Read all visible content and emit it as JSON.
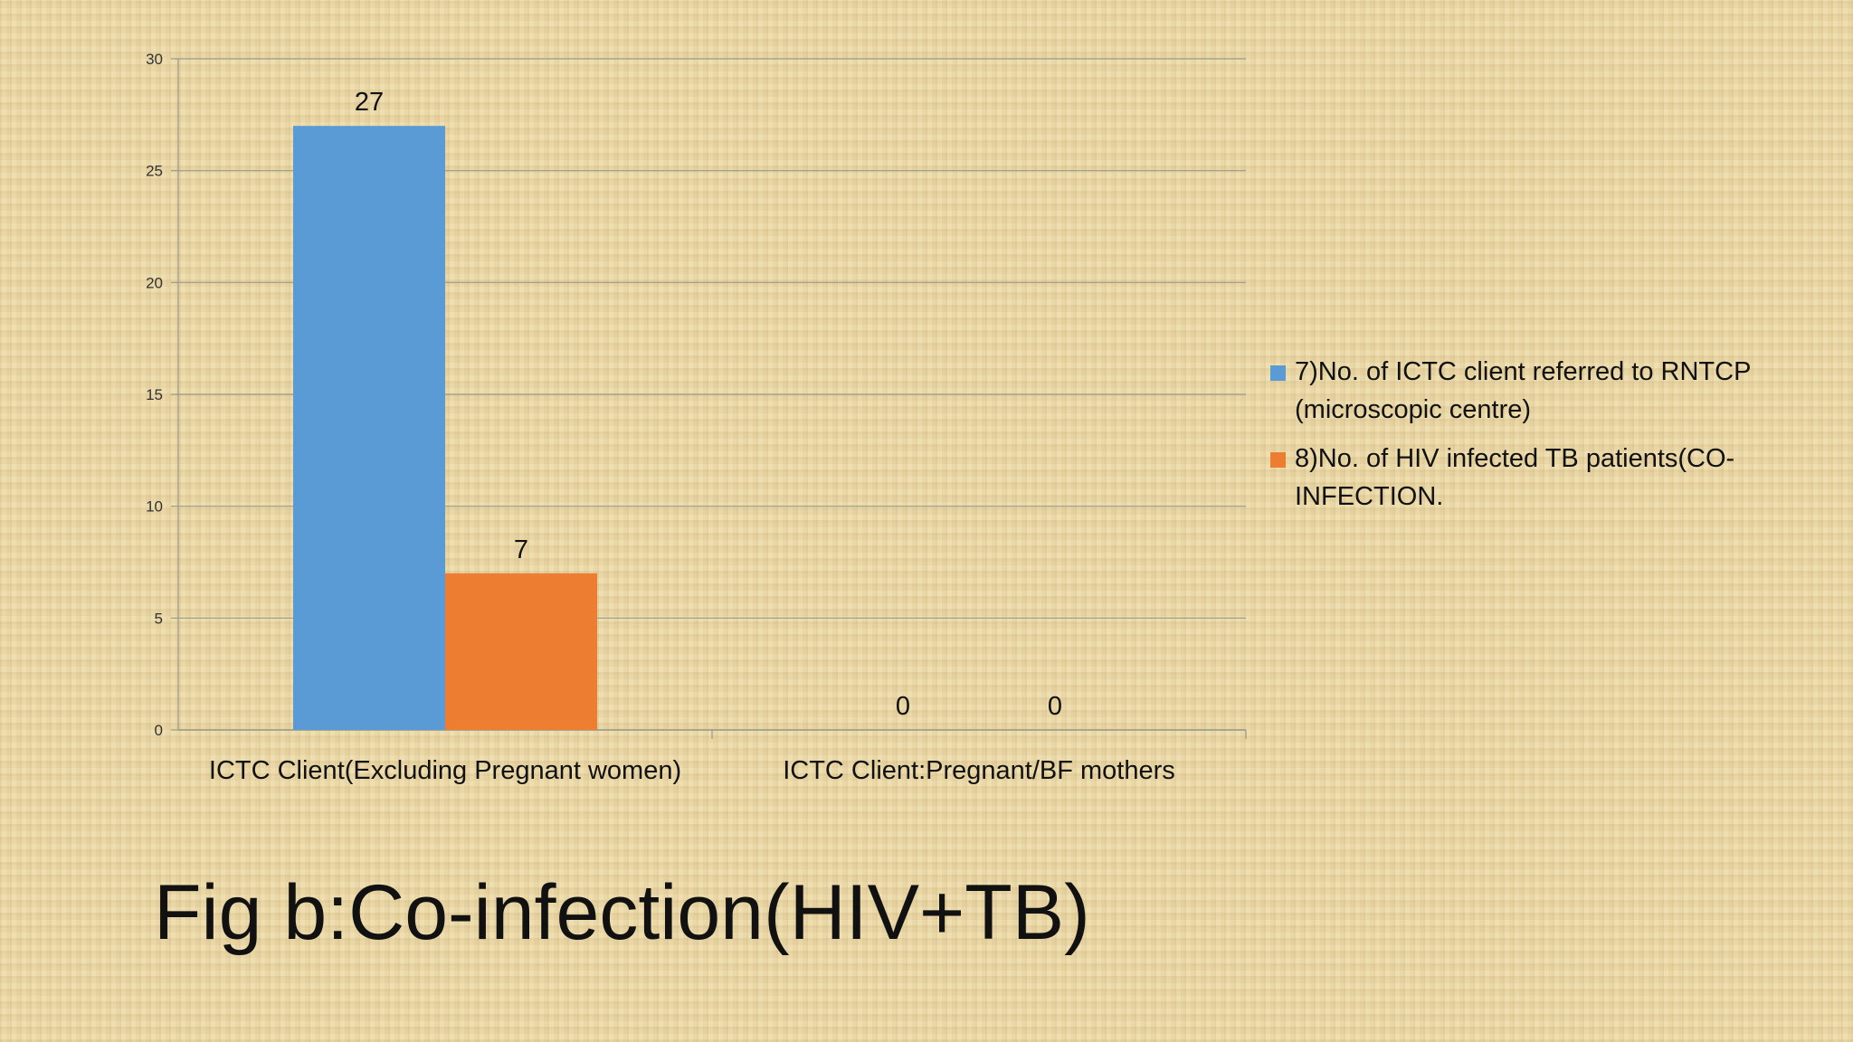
{
  "chart_data": {
    "type": "bar",
    "categories": [
      "ICTC Client(Excluding Pregnant women)",
      "ICTC Client:Pregnant/BF mothers"
    ],
    "series": [
      {
        "name": "7)No. of ICTC client referred to RNTCP (microscopic centre)",
        "values": [
          27,
          0
        ],
        "color": "#5b9bd5"
      },
      {
        "name": "8)No. of HIV infected TB patients(CO-INFECTION.",
        "values": [
          7,
          0
        ],
        "color": "#ed7d31"
      }
    ],
    "ylim": [
      0,
      30
    ],
    "yticks": [
      0,
      5,
      10,
      15,
      20,
      25,
      30
    ],
    "grid": true,
    "legend_position": "right",
    "data_labels": true
  },
  "caption": "Fig b:Co-infection(HIV+TB)"
}
